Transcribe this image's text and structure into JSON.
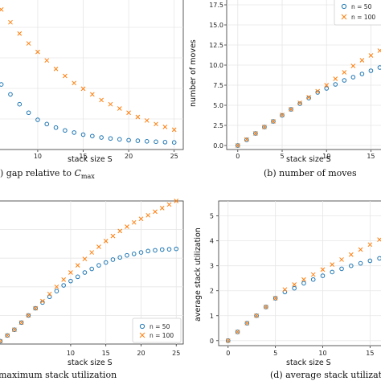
{
  "colors": {
    "series_o": "#1f77b4",
    "series_x": "#ff7f0e",
    "grid": "#e6e6e6",
    "axis": "#333333"
  },
  "chart_data": [
    {
      "id": "a",
      "type": "scatter",
      "caption_prefix": ") gap relative to ",
      "caption_math_main": "C",
      "caption_math_sub": "max",
      "xlabel": "stack size S",
      "ylabel": "",
      "xlim": [
        5.5,
        26
      ],
      "ylim": [
        0,
        10.8
      ],
      "xticks": [
        10,
        15,
        20,
        25
      ],
      "yticks": [],
      "grid": true,
      "legend": null,
      "series": [
        {
          "name": "n = 50",
          "marker": "o",
          "x": [
            5,
            6,
            7,
            8,
            9,
            10,
            11,
            12,
            13,
            14,
            15,
            16,
            17,
            18,
            19,
            20,
            21,
            22,
            23,
            24,
            25
          ],
          "y": [
            5.4,
            4.6,
            3.9,
            3.2,
            2.6,
            2.1,
            1.8,
            1.55,
            1.35,
            1.2,
            1.05,
            0.95,
            0.85,
            0.78,
            0.72,
            0.66,
            0.62,
            0.58,
            0.55,
            0.52,
            0.5
          ]
        },
        {
          "name": "n = 100",
          "marker": "x",
          "x": [
            5,
            6,
            7,
            8,
            9,
            10,
            11,
            12,
            13,
            14,
            15,
            16,
            17,
            18,
            19,
            20,
            21,
            22,
            23,
            24,
            25
          ],
          "y": [
            10.5,
            9.9,
            9.0,
            8.2,
            7.5,
            6.9,
            6.3,
            5.7,
            5.2,
            4.7,
            4.3,
            3.9,
            3.5,
            3.2,
            2.9,
            2.6,
            2.3,
            2.05,
            1.8,
            1.6,
            1.4
          ]
        }
      ]
    },
    {
      "id": "b",
      "type": "scatter",
      "caption": "(b)  number of moves",
      "xlabel": "stack size S",
      "ylabel": "number of moves",
      "xlim": [
        -1.25,
        16.5
      ],
      "ylim": [
        -0.5,
        18.5
      ],
      "xticks": [
        0,
        5,
        10,
        15
      ],
      "yticks": [
        0.0,
        2.5,
        5.0,
        7.5,
        10.0,
        12.5,
        15.0,
        17.5
      ],
      "ytick_labels": [
        "0.0",
        "2.5",
        "5.0",
        "7.5",
        "10.0",
        "12.5",
        "15.0",
        "17.5"
      ],
      "grid": true,
      "legend": [
        "n = 50",
        "n = 100"
      ],
      "series": [
        {
          "name": "n = 50",
          "marker": "o",
          "x": [
            0,
            1,
            2,
            3,
            4,
            5,
            6,
            7,
            8,
            9,
            10,
            11,
            12,
            13,
            14,
            15,
            16
          ],
          "y": [
            0.0,
            0.7,
            1.5,
            2.3,
            3.0,
            3.75,
            4.5,
            5.2,
            5.9,
            6.6,
            7.1,
            7.6,
            8.1,
            8.5,
            8.9,
            9.3,
            9.7
          ]
        },
        {
          "name": "n = 100",
          "marker": "x",
          "x": [
            0,
            1,
            2,
            3,
            4,
            5,
            6,
            7,
            8,
            9,
            10,
            11,
            12,
            13,
            14,
            15,
            16
          ],
          "y": [
            0.0,
            0.75,
            1.5,
            2.3,
            3.0,
            3.8,
            4.5,
            5.3,
            6.0,
            6.75,
            7.5,
            8.3,
            9.1,
            9.9,
            10.6,
            11.2,
            11.8
          ]
        }
      ]
    },
    {
      "id": "c",
      "type": "scatter",
      "caption": "maximum stack utilization",
      "xlabel": "stack size S",
      "ylabel": "",
      "xlim": [
        -0.5,
        26
      ],
      "ylim": [
        0,
        10
      ],
      "xticks": [
        10,
        15,
        20,
        25
      ],
      "yticks": [],
      "grid": true,
      "legend": [
        "n = 50",
        "n = 100"
      ],
      "series": [
        {
          "name": "n = 50",
          "marker": "o",
          "x": [
            0,
            1,
            2,
            3,
            4,
            5,
            6,
            7,
            8,
            9,
            10,
            11,
            12,
            13,
            14,
            15,
            16,
            17,
            18,
            19,
            20,
            21,
            22,
            23,
            24,
            25
          ],
          "y": [
            0.2,
            0.6,
            1.0,
            1.5,
            2.0,
            2.5,
            2.9,
            3.3,
            3.7,
            4.1,
            4.4,
            4.7,
            5.0,
            5.25,
            5.5,
            5.7,
            5.9,
            6.05,
            6.2,
            6.3,
            6.4,
            6.5,
            6.55,
            6.6,
            6.62,
            6.65
          ]
        },
        {
          "name": "n = 100",
          "marker": "x",
          "x": [
            0,
            1,
            2,
            3,
            4,
            5,
            6,
            7,
            8,
            9,
            10,
            11,
            12,
            13,
            14,
            15,
            16,
            17,
            18,
            19,
            20,
            21,
            22,
            23,
            24,
            25
          ],
          "y": [
            0.2,
            0.6,
            1.0,
            1.5,
            2.0,
            2.5,
            3.0,
            3.5,
            4.0,
            4.5,
            5.0,
            5.5,
            5.95,
            6.4,
            6.8,
            7.2,
            7.55,
            7.9,
            8.2,
            8.5,
            8.75,
            9.0,
            9.25,
            9.5,
            9.75,
            10.0
          ]
        }
      ]
    },
    {
      "id": "d",
      "type": "scatter",
      "caption": "(d)  average stack utilization",
      "xlabel": "stack size S",
      "ylabel": "average stack utilization",
      "xlim": [
        -1,
        16.5
      ],
      "ylim": [
        -0.2,
        5.6
      ],
      "xticks": [
        0,
        5,
        10,
        15
      ],
      "yticks": [
        0,
        1,
        2,
        3,
        4,
        5
      ],
      "ytick_labels": [
        "0",
        "1",
        "2",
        "3",
        "4",
        "5"
      ],
      "grid": true,
      "legend": null,
      "series": [
        {
          "name": "n = 50",
          "marker": "o",
          "x": [
            0,
            1,
            2,
            3,
            4,
            5,
            6,
            7,
            8,
            9,
            10,
            11,
            12,
            13,
            14,
            15,
            16
          ],
          "y": [
            0.0,
            0.35,
            0.7,
            1.0,
            1.35,
            1.7,
            1.95,
            2.1,
            2.3,
            2.45,
            2.6,
            2.75,
            2.88,
            3.0,
            3.1,
            3.2,
            3.3
          ]
        },
        {
          "name": "n = 100",
          "marker": "x",
          "x": [
            0,
            1,
            2,
            3,
            4,
            5,
            6,
            7,
            8,
            9,
            10,
            11,
            12,
            13,
            14,
            15,
            16
          ],
          "y": [
            0.0,
            0.35,
            0.7,
            1.0,
            1.35,
            1.7,
            2.05,
            2.25,
            2.45,
            2.65,
            2.85,
            3.05,
            3.25,
            3.45,
            3.65,
            3.85,
            4.05
          ]
        }
      ]
    }
  ]
}
